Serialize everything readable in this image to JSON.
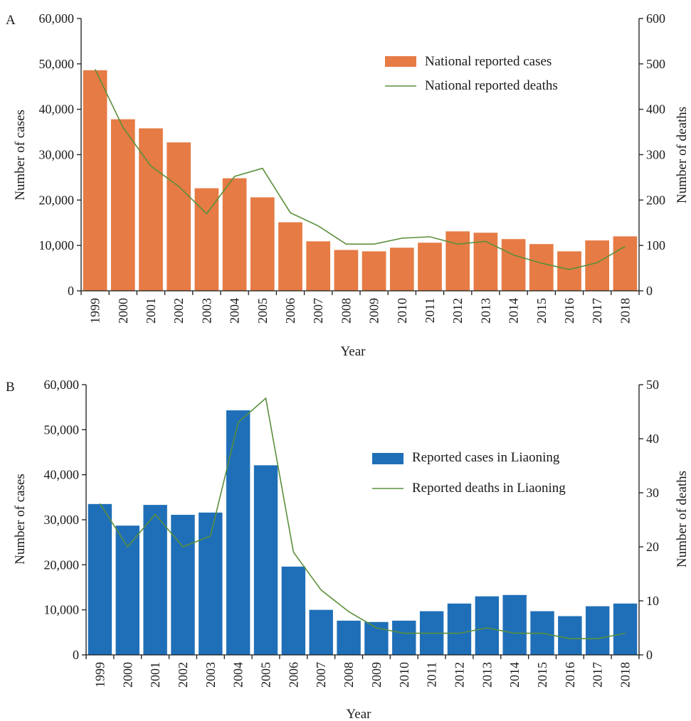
{
  "chart_data": [
    {
      "type": "bar",
      "panel_label": "A",
      "categories": [
        "1999",
        "2000",
        "2001",
        "2002",
        "2003",
        "2004",
        "2005",
        "2006",
        "2007",
        "2008",
        "2009",
        "2010",
        "2011",
        "2012",
        "2013",
        "2014",
        "2015",
        "2016",
        "2017",
        "2018"
      ],
      "series": [
        {
          "name": "National reported cases",
          "type": "bar",
          "axis": "left",
          "color": "#E67B45",
          "values": [
            48600,
            37800,
            35800,
            32700,
            22600,
            24800,
            20600,
            15100,
            10900,
            9000,
            8700,
            9500,
            10600,
            13100,
            12800,
            11400,
            10300,
            8700,
            11100,
            12000
          ]
        },
        {
          "name": "National reported deaths",
          "type": "line",
          "axis": "right",
          "color": "#5A8F3A",
          "values": [
            488,
            360,
            275,
            230,
            170,
            252,
            270,
            172,
            143,
            103,
            103,
            116,
            119,
            103,
            109,
            79,
            61,
            47,
            62,
            98
          ]
        }
      ],
      "xlabel": "Year",
      "ylabel_left": "Number of cases",
      "ylabel_right": "Number of deaths",
      "ylim_left": [
        0,
        60000
      ],
      "ylim_right": [
        0,
        600
      ],
      "yticks_left": [
        "0",
        "10,000",
        "20,000",
        "30,000",
        "40,000",
        "50,000",
        "60,000"
      ],
      "yticks_right": [
        "0",
        "100",
        "200",
        "300",
        "400",
        "500",
        "600"
      ],
      "legend_position": "upper-right",
      "grid": false
    },
    {
      "type": "bar",
      "panel_label": "B",
      "categories": [
        "1999",
        "2000",
        "2001",
        "2002",
        "2003",
        "2004",
        "2005",
        "2006",
        "2007",
        "2008",
        "2009",
        "2010",
        "2011",
        "2012",
        "2013",
        "2014",
        "2015",
        "2016",
        "2017",
        "2018"
      ],
      "series": [
        {
          "name": "Reported cases in Liaoning",
          "type": "bar",
          "axis": "left",
          "color": "#1F6FB8",
          "values": [
            33500,
            28700,
            33300,
            31100,
            31600,
            54300,
            42100,
            19600,
            10000,
            7600,
            7300,
            7600,
            9700,
            11400,
            13000,
            13300,
            9700,
            8600,
            10800,
            11400
          ]
        },
        {
          "name": "Reported deaths in Liaoning",
          "type": "line",
          "axis": "right",
          "color": "#5A8F3A",
          "values": [
            28,
            20,
            26,
            20,
            22,
            43,
            47.5,
            19,
            12,
            8,
            5,
            4,
            4,
            4,
            5,
            4,
            4,
            3,
            3,
            4
          ]
        }
      ],
      "xlabel": "Year",
      "ylabel_left": "Number of cases",
      "ylabel_right": "Number of deaths",
      "ylim_left": [
        0,
        60000
      ],
      "ylim_right": [
        0,
        50
      ],
      "yticks_left": [
        "0",
        "10,000",
        "20,000",
        "30,000",
        "40,000",
        "50,000",
        "60,000"
      ],
      "yticks_right": [
        "0",
        "10",
        "20",
        "30",
        "40",
        "50"
      ],
      "legend_position": "center-right",
      "grid": false
    }
  ]
}
